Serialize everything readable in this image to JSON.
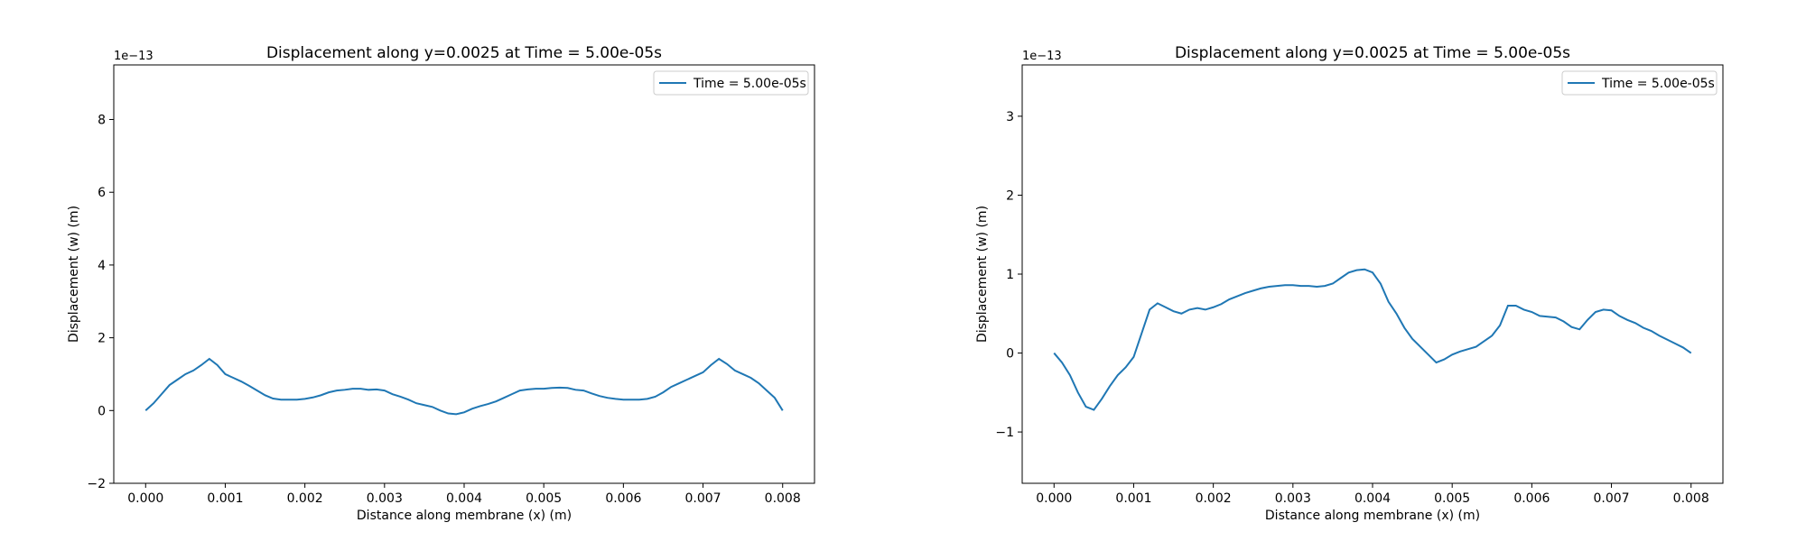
{
  "chart_data": [
    {
      "type": "line",
      "title": "Displacement along y=0.0025 at Time = 5.00e-05s",
      "xlabel": "Distance along membrane (x) (m)",
      "ylabel": "Displacement (w) (m)",
      "y_offset_label": "1e−13",
      "xlim": [
        -0.0004,
        0.0084
      ],
      "ylim": [
        -2,
        9.5
      ],
      "x_ticks": [
        0.0,
        0.001,
        0.002,
        0.003,
        0.004,
        0.005,
        0.006,
        0.007,
        0.008
      ],
      "x_tick_labels": [
        "0.000",
        "0.001",
        "0.002",
        "0.003",
        "0.004",
        "0.005",
        "0.006",
        "0.007",
        "0.008"
      ],
      "y_ticks": [
        -2,
        0,
        2,
        4,
        6,
        8
      ],
      "y_tick_labels": [
        "−2",
        "0",
        "2",
        "4",
        "6",
        "8"
      ],
      "grid": false,
      "legend_position": "top-right",
      "color": "#1f77b4",
      "series": [
        {
          "name": "Time = 5.00e-05s",
          "x": [
            0,
            0.0001,
            0.0002,
            0.0003,
            0.0004,
            0.0005,
            0.0006,
            0.0007,
            0.0008,
            0.0009,
            0.001,
            0.0011,
            0.0012,
            0.0013,
            0.0014,
            0.0015,
            0.0016,
            0.0017,
            0.0018,
            0.0019,
            0.002,
            0.0021,
            0.0022,
            0.0023,
            0.0024,
            0.0025,
            0.0026,
            0.0027,
            0.0028,
            0.0029,
            0.003,
            0.0031,
            0.0032,
            0.0033,
            0.0034,
            0.0035,
            0.0036,
            0.0037,
            0.0038,
            0.0039,
            0.004,
            0.0041,
            0.0042,
            0.0043,
            0.0044,
            0.0045,
            0.0046,
            0.0047,
            0.0048,
            0.0049,
            0.005,
            0.0051,
            0.0052,
            0.0053,
            0.0054,
            0.0055,
            0.0056,
            0.0057,
            0.0058,
            0.0059,
            0.006,
            0.0061,
            0.0062,
            0.0063,
            0.0064,
            0.0065,
            0.0066,
            0.0067,
            0.0068,
            0.0069,
            0.007,
            0.0071,
            0.0072,
            0.0073,
            0.0074,
            0.0075,
            0.0076,
            0.0077,
            0.0078,
            0.0079,
            0.008
          ],
          "y": [
            0.0,
            0.2,
            0.45,
            0.7,
            0.85,
            1.0,
            1.1,
            1.25,
            1.42,
            1.25,
            1.0,
            0.9,
            0.8,
            0.68,
            0.55,
            0.42,
            0.33,
            0.3,
            0.3,
            0.3,
            0.32,
            0.36,
            0.42,
            0.5,
            0.55,
            0.57,
            0.6,
            0.6,
            0.57,
            0.58,
            0.55,
            0.45,
            0.38,
            0.3,
            0.2,
            0.15,
            0.1,
            0.0,
            -0.08,
            -0.1,
            -0.05,
            0.05,
            0.12,
            0.18,
            0.25,
            0.35,
            0.45,
            0.55,
            0.58,
            0.6,
            0.6,
            0.62,
            0.63,
            0.62,
            0.57,
            0.55,
            0.47,
            0.4,
            0.35,
            0.32,
            0.3,
            0.3,
            0.3,
            0.32,
            0.38,
            0.5,
            0.65,
            0.75,
            0.85,
            0.95,
            1.05,
            1.25,
            1.42,
            1.28,
            1.1,
            1.0,
            0.9,
            0.75,
            0.55,
            0.35,
            0.0
          ]
        }
      ]
    },
    {
      "type": "line",
      "title": "Displacement along y=0.0025 at Time = 5.00e-05s",
      "xlabel": "Distance along membrane (x) (m)",
      "ylabel": "Displacement (w) (m)",
      "y_offset_label": "1e−13",
      "xlim": [
        -0.0004,
        0.0084
      ],
      "ylim": [
        -1.65,
        3.65
      ],
      "x_ticks": [
        0.0,
        0.001,
        0.002,
        0.003,
        0.004,
        0.005,
        0.006,
        0.007,
        0.008
      ],
      "x_tick_labels": [
        "0.000",
        "0.001",
        "0.002",
        "0.003",
        "0.004",
        "0.005",
        "0.006",
        "0.007",
        "0.008"
      ],
      "y_ticks": [
        -1,
        0,
        1,
        2,
        3
      ],
      "y_tick_labels": [
        "−1",
        "0",
        "1",
        "2",
        "3"
      ],
      "grid": false,
      "legend_position": "top-right",
      "color": "#1f77b4",
      "series": [
        {
          "name": "Time = 5.00e-05s",
          "x": [
            0,
            0.0001,
            0.0002,
            0.0003,
            0.0004,
            0.0005,
            0.0006,
            0.0007,
            0.0008,
            0.0009,
            0.001,
            0.0011,
            0.0012,
            0.0013,
            0.0014,
            0.0015,
            0.0016,
            0.0017,
            0.0018,
            0.0019,
            0.002,
            0.0021,
            0.0022,
            0.0023,
            0.0024,
            0.0025,
            0.0026,
            0.0027,
            0.0028,
            0.0029,
            0.003,
            0.0031,
            0.0032,
            0.0033,
            0.0034,
            0.0035,
            0.0036,
            0.0037,
            0.0038,
            0.0039,
            0.004,
            0.0041,
            0.0042,
            0.0043,
            0.0044,
            0.0045,
            0.0046,
            0.0047,
            0.0048,
            0.0049,
            0.005,
            0.0051,
            0.0052,
            0.0053,
            0.0054,
            0.0055,
            0.0056,
            0.0057,
            0.0058,
            0.0059,
            0.006,
            0.0061,
            0.0062,
            0.0063,
            0.0064,
            0.0065,
            0.0066,
            0.0067,
            0.0068,
            0.0069,
            0.007,
            0.0071,
            0.0072,
            0.0073,
            0.0074,
            0.0075,
            0.0076,
            0.0077,
            0.0078,
            0.0079,
            0.008
          ],
          "y": [
            0.0,
            -0.12,
            -0.28,
            -0.5,
            -0.68,
            -0.72,
            -0.58,
            -0.42,
            -0.28,
            -0.18,
            -0.05,
            0.25,
            0.55,
            0.63,
            0.58,
            0.53,
            0.5,
            0.55,
            0.57,
            0.55,
            0.58,
            0.62,
            0.68,
            0.72,
            0.76,
            0.79,
            0.82,
            0.84,
            0.85,
            0.86,
            0.86,
            0.85,
            0.85,
            0.84,
            0.85,
            0.88,
            0.95,
            1.02,
            1.05,
            1.06,
            1.02,
            0.88,
            0.65,
            0.5,
            0.32,
            0.18,
            0.08,
            -0.02,
            -0.12,
            -0.08,
            -0.02,
            0.02,
            0.05,
            0.08,
            0.15,
            0.22,
            0.35,
            0.6,
            0.6,
            0.55,
            0.52,
            0.47,
            0.46,
            0.45,
            0.4,
            0.33,
            0.3,
            0.42,
            0.52,
            0.55,
            0.54,
            0.47,
            0.42,
            0.38,
            0.32,
            0.28,
            0.22,
            0.17,
            0.12,
            0.07,
            0.0
          ]
        }
      ]
    }
  ]
}
